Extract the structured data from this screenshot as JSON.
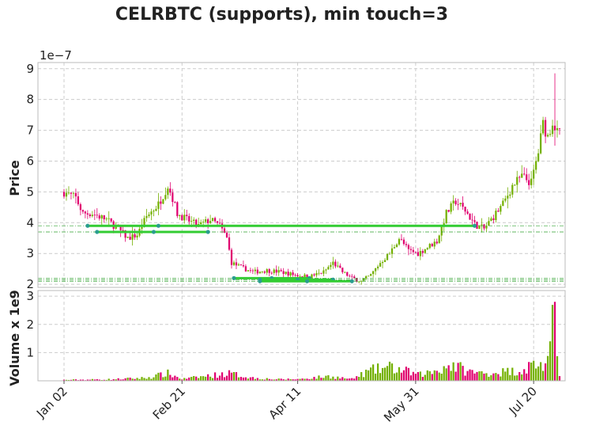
{
  "title": "CELRBTC (supports), min touch=3",
  "chart_data": {
    "type": "candlestick",
    "title": "CELRBTC (supports), min touch=3",
    "grid": true,
    "x_tick_labels": [
      "Jan 02",
      "Feb 21",
      "Apr 11",
      "May 31",
      "Jul 20"
    ],
    "x_tick_days": [
      0,
      50,
      99,
      149,
      199
    ],
    "days_span": [
      0,
      210
    ],
    "price_panel": {
      "ylabel": "Price",
      "scale_label": "1e−7",
      "ylim": [
        1.9,
        9.2
      ],
      "yticks": [
        2,
        3,
        4,
        5,
        6,
        7,
        8,
        9
      ]
    },
    "volume_panel": {
      "ylabel": "Volume x 1e9",
      "ylim": [
        0,
        3.2
      ],
      "yticks": [
        1,
        2,
        3
      ]
    },
    "support_levels": [
      {
        "level": 3.9,
        "from_day": 10,
        "to_day": 174
      },
      {
        "level": 3.7,
        "from_day": 14,
        "to_day": 61
      },
      {
        "level": 2.2,
        "from_day": 72,
        "to_day": 104
      },
      {
        "level": 2.15,
        "from_day": 83,
        "to_day": 114
      },
      {
        "level": 2.1,
        "from_day": 83,
        "to_day": 122
      }
    ],
    "price_anchors": [
      [
        0,
        5.0
      ],
      [
        5,
        4.8
      ],
      [
        8,
        4.3
      ],
      [
        12,
        4.3
      ],
      [
        18,
        4.1
      ],
      [
        23,
        3.8
      ],
      [
        27,
        3.5
      ],
      [
        31,
        3.6
      ],
      [
        35,
        4.2
      ],
      [
        40,
        4.6
      ],
      [
        44,
        5.2
      ],
      [
        46,
        4.8
      ],
      [
        48,
        4.3
      ],
      [
        52,
        4.1
      ],
      [
        57,
        3.9
      ],
      [
        62,
        4.1
      ],
      [
        66,
        3.9
      ],
      [
        69,
        3.5
      ],
      [
        71,
        2.7
      ],
      [
        75,
        2.55
      ],
      [
        80,
        2.4
      ],
      [
        86,
        2.45
      ],
      [
        92,
        2.4
      ],
      [
        98,
        2.3
      ],
      [
        104,
        2.25
      ],
      [
        110,
        2.4
      ],
      [
        114,
        2.7
      ],
      [
        118,
        2.4
      ],
      [
        122,
        2.2
      ],
      [
        126,
        2.1
      ],
      [
        130,
        2.3
      ],
      [
        134,
        2.7
      ],
      [
        138,
        3.0
      ],
      [
        142,
        3.5
      ],
      [
        146,
        3.1
      ],
      [
        150,
        3.0
      ],
      [
        154,
        3.2
      ],
      [
        158,
        3.4
      ],
      [
        162,
        4.3
      ],
      [
        166,
        4.7
      ],
      [
        170,
        4.4
      ],
      [
        174,
        3.95
      ],
      [
        178,
        3.8
      ],
      [
        182,
        4.2
      ],
      [
        186,
        4.6
      ],
      [
        190,
        5.2
      ],
      [
        194,
        5.5
      ],
      [
        198,
        5.3
      ],
      [
        201,
        6.3
      ],
      [
        203,
        7.2
      ],
      [
        205,
        6.8
      ],
      [
        207,
        7.3
      ],
      [
        209,
        6.9
      ]
    ],
    "volume_anchors": [
      [
        0,
        0.03
      ],
      [
        20,
        0.05
      ],
      [
        35,
        0.1
      ],
      [
        44,
        0.25
      ],
      [
        50,
        0.06
      ],
      [
        70,
        0.25
      ],
      [
        80,
        0.1
      ],
      [
        90,
        0.05
      ],
      [
        100,
        0.06
      ],
      [
        112,
        0.15
      ],
      [
        122,
        0.06
      ],
      [
        130,
        0.35
      ],
      [
        138,
        0.45
      ],
      [
        146,
        0.3
      ],
      [
        150,
        0.2
      ],
      [
        156,
        0.3
      ],
      [
        164,
        0.55
      ],
      [
        172,
        0.3
      ],
      [
        178,
        0.25
      ],
      [
        186,
        0.3
      ],
      [
        194,
        0.35
      ],
      [
        200,
        0.6
      ],
      [
        203,
        0.5
      ],
      [
        206,
        0.6
      ],
      [
        208,
        2.8
      ],
      [
        209,
        1.0
      ],
      [
        210,
        0.3
      ]
    ]
  },
  "colors": {
    "up": "#73b000",
    "down": "#e0006f",
    "support_major": "#33cc33",
    "support_minor": "#2ea02e",
    "touch_marker": "#2a9d8f",
    "grid": "#cccccc"
  }
}
